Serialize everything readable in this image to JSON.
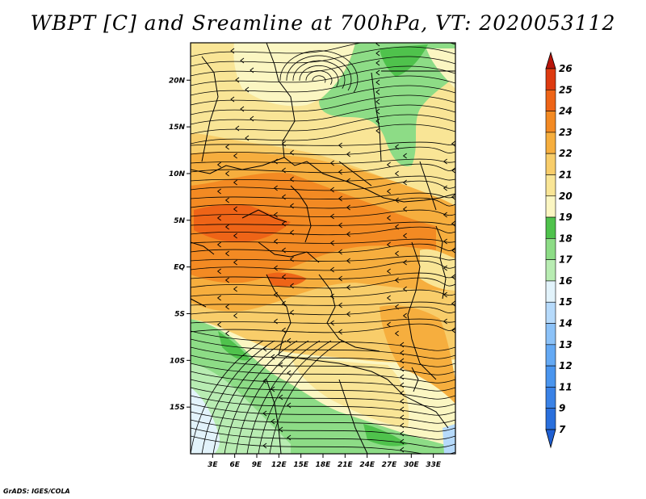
{
  "title": "WBPT [C] and Sreamline at 700hPa, VT: 2020053112",
  "credit": "GrADS: IGES/COLA",
  "map": {
    "lon_range": [
      0,
      36
    ],
    "lat_range": [
      -20,
      24
    ],
    "x_ticks": [
      {
        "label": "3E",
        "lon": 3
      },
      {
        "label": "6E",
        "lon": 6
      },
      {
        "label": "9E",
        "lon": 9
      },
      {
        "label": "12E",
        "lon": 12
      },
      {
        "label": "15E",
        "lon": 15
      },
      {
        "label": "18E",
        "lon": 18
      },
      {
        "label": "21E",
        "lon": 21
      },
      {
        "label": "24E",
        "lon": 24
      },
      {
        "label": "27E",
        "lon": 27
      },
      {
        "label": "30E",
        "lon": 30
      },
      {
        "label": "33E",
        "lon": 33
      }
    ],
    "y_ticks": [
      {
        "label": "20N",
        "lat": 20
      },
      {
        "label": "15N",
        "lat": 15
      },
      {
        "label": "10N",
        "lat": 10
      },
      {
        "label": "5N",
        "lat": 5
      },
      {
        "label": "EQ",
        "lat": 0
      },
      {
        "label": "5S",
        "lat": -5
      },
      {
        "label": "10S",
        "lat": -10
      },
      {
        "label": "15S",
        "lat": -15
      }
    ]
  },
  "colorbar": {
    "levels": [
      "7",
      "9",
      "11",
      "12",
      "13",
      "14",
      "15",
      "16",
      "17",
      "18",
      "19",
      "20",
      "21",
      "22",
      "23",
      "24",
      "25",
      "26"
    ],
    "colors": [
      "#2a6fdc",
      "#3a82e6",
      "#4a95ee",
      "#64a9f4",
      "#8cc2f8",
      "#b6dafb",
      "#e2f3fb",
      "#b8ecb2",
      "#8ddc86",
      "#4fc24c",
      "#fbf6c2",
      "#f9e596",
      "#f8cd6a",
      "#f6ae3e",
      "#f38a23",
      "#ee6417",
      "#dd3a10",
      "#c21f0c"
    ],
    "top_color": "#b8150b",
    "bottom_color": "#1f5fd2"
  }
}
